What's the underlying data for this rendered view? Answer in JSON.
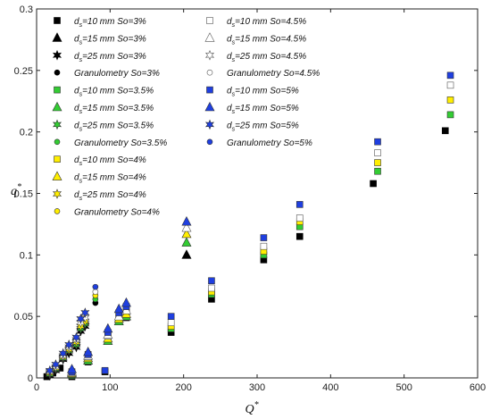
{
  "chart_data": {
    "type": "scatter",
    "xlabel": "Q*",
    "ylabel": "q*",
    "xlim": [
      0,
      600
    ],
    "ylim": [
      0,
      0.3
    ],
    "xticks": [
      "0",
      "100",
      "200",
      "300",
      "400",
      "500",
      "600"
    ],
    "yticks": [
      "0",
      "0.05",
      "0.1",
      "0.15",
      "0.2",
      "0.25",
      "0.3"
    ],
    "grid": false,
    "legend_position": "top-left",
    "colors": {
      "So=3%": "#000000",
      "So=3.5%": "#33cc33",
      "So=4%": "#ffee00",
      "So=4.5%": "#ffffff",
      "So=5%": "#1f3fe0"
    },
    "series": [
      {
        "name": "ds=10 mm So=3%",
        "marker": "square",
        "color": "#000000",
        "points": [
          [
            14,
            0.001
          ],
          [
            22,
            0.004
          ],
          [
            32,
            0.008
          ],
          [
            48,
            0.001
          ],
          [
            70,
            0.013
          ],
          [
            93,
            0.005
          ],
          [
            97,
            0.03
          ],
          [
            112,
            0.046
          ],
          [
            122,
            0.049
          ],
          [
            183,
            0.037
          ],
          [
            238,
            0.064
          ],
          [
            309,
            0.096
          ],
          [
            358,
            0.115
          ],
          [
            458,
            0.158
          ],
          [
            556,
            0.201
          ]
        ]
      },
      {
        "name": "ds=15 mm So=3%",
        "marker": "triangle",
        "color": "#000000",
        "points": [
          [
            204,
            0.1
          ]
        ]
      },
      {
        "name": "ds=25 mm So=3%",
        "marker": "star",
        "color": "#000000",
        "points": [
          [
            18,
            0.002
          ],
          [
            26,
            0.006
          ],
          [
            36,
            0.015
          ],
          [
            44,
            0.02
          ],
          [
            54,
            0.025
          ],
          [
            60,
            0.038
          ],
          [
            66,
            0.042
          ]
        ]
      },
      {
        "name": "Granulometry So=3%",
        "marker": "circle",
        "color": "#000000",
        "points": [
          [
            80,
            0.061
          ]
        ]
      },
      {
        "name": "ds=10 mm So=3.5%",
        "marker": "square",
        "color": "#33cc33",
        "points": [
          [
            48,
            0.002
          ],
          [
            70,
            0.015
          ],
          [
            97,
            0.031
          ],
          [
            112,
            0.048
          ],
          [
            122,
            0.052
          ],
          [
            183,
            0.04
          ],
          [
            238,
            0.068
          ],
          [
            309,
            0.1
          ],
          [
            358,
            0.123
          ],
          [
            464,
            0.168
          ],
          [
            563,
            0.214
          ]
        ]
      },
      {
        "name": "ds=15 mm So=3.5%",
        "marker": "triangle",
        "color": "#33cc33",
        "points": [
          [
            48,
            0.003
          ],
          [
            70,
            0.014
          ],
          [
            97,
            0.03
          ],
          [
            112,
            0.046
          ],
          [
            122,
            0.05
          ],
          [
            204,
            0.11
          ]
        ]
      },
      {
        "name": "ds=25 mm So=3.5%",
        "marker": "star",
        "color": "#33cc33",
        "points": [
          [
            18,
            0.003
          ],
          [
            26,
            0.007
          ],
          [
            36,
            0.016
          ],
          [
            44,
            0.022
          ],
          [
            54,
            0.027
          ],
          [
            60,
            0.04
          ],
          [
            66,
            0.044
          ]
        ]
      },
      {
        "name": "Granulometry So=3.5%",
        "marker": "circle",
        "color": "#33cc33",
        "points": [
          [
            80,
            0.064
          ]
        ]
      },
      {
        "name": "ds=10 mm So=4%",
        "marker": "square",
        "color": "#ffee00",
        "points": [
          [
            48,
            0.003
          ],
          [
            70,
            0.016
          ],
          [
            97,
            0.032
          ],
          [
            112,
            0.049
          ],
          [
            122,
            0.053
          ],
          [
            183,
            0.042
          ],
          [
            238,
            0.07
          ],
          [
            309,
            0.103
          ],
          [
            358,
            0.127
          ],
          [
            464,
            0.175
          ],
          [
            563,
            0.226
          ]
        ]
      },
      {
        "name": "ds=15 mm So=4%",
        "marker": "triangle",
        "color": "#ffee00",
        "points": [
          [
            48,
            0.004
          ],
          [
            70,
            0.016
          ],
          [
            97,
            0.032
          ],
          [
            112,
            0.048
          ],
          [
            122,
            0.052
          ],
          [
            204,
            0.117
          ]
        ]
      },
      {
        "name": "ds=25 mm So=4%",
        "marker": "star",
        "color": "#ffee00",
        "points": [
          [
            18,
            0.004
          ],
          [
            26,
            0.008
          ],
          [
            36,
            0.017
          ],
          [
            44,
            0.023
          ],
          [
            54,
            0.029
          ],
          [
            60,
            0.042
          ],
          [
            66,
            0.046
          ]
        ]
      },
      {
        "name": "Granulometry So=4%",
        "marker": "circle",
        "color": "#ffee00",
        "points": [
          [
            80,
            0.067
          ]
        ]
      },
      {
        "name": "ds=10 mm So=4.5%",
        "marker": "square",
        "color": "#ffffff",
        "points": [
          [
            48,
            0.004
          ],
          [
            70,
            0.017
          ],
          [
            97,
            0.034
          ],
          [
            112,
            0.051
          ],
          [
            122,
            0.055
          ],
          [
            183,
            0.045
          ],
          [
            238,
            0.073
          ],
          [
            309,
            0.107
          ],
          [
            358,
            0.13
          ],
          [
            464,
            0.183
          ],
          [
            563,
            0.238
          ]
        ]
      },
      {
        "name": "ds=15 mm So=4.5%",
        "marker": "triangle",
        "color": "#ffffff",
        "points": [
          [
            48,
            0.005
          ],
          [
            70,
            0.018
          ],
          [
            97,
            0.035
          ],
          [
            112,
            0.05
          ],
          [
            122,
            0.055
          ],
          [
            204,
            0.122
          ]
        ]
      },
      {
        "name": "ds=25 mm So=4.5%",
        "marker": "star",
        "color": "#ffffff",
        "points": [
          [
            18,
            0.005
          ],
          [
            26,
            0.009
          ],
          [
            36,
            0.018
          ],
          [
            44,
            0.025
          ],
          [
            54,
            0.031
          ],
          [
            60,
            0.045
          ],
          [
            66,
            0.049
          ]
        ]
      },
      {
        "name": "Granulometry So=4.5%",
        "marker": "circle",
        "color": "#ffffff",
        "points": [
          [
            80,
            0.07
          ]
        ]
      },
      {
        "name": "ds=10 mm So=5%",
        "marker": "square",
        "color": "#1f3fe0",
        "points": [
          [
            48,
            0.005
          ],
          [
            70,
            0.019
          ],
          [
            93,
            0.006
          ],
          [
            97,
            0.037
          ],
          [
            112,
            0.053
          ],
          [
            122,
            0.058
          ],
          [
            183,
            0.05
          ],
          [
            238,
            0.079
          ],
          [
            309,
            0.114
          ],
          [
            358,
            0.141
          ],
          [
            464,
            0.192
          ],
          [
            563,
            0.246
          ]
        ]
      },
      {
        "name": "ds=15 mm So=5%",
        "marker": "triangle",
        "color": "#1f3fe0",
        "points": [
          [
            48,
            0.007
          ],
          [
            70,
            0.021
          ],
          [
            97,
            0.04
          ],
          [
            112,
            0.056
          ],
          [
            122,
            0.061
          ],
          [
            204,
            0.127
          ]
        ]
      },
      {
        "name": "ds=25 mm So=5%",
        "marker": "star",
        "color": "#1f3fe0",
        "points": [
          [
            18,
            0.006
          ],
          [
            26,
            0.011
          ],
          [
            36,
            0.02
          ],
          [
            44,
            0.027
          ],
          [
            54,
            0.033
          ],
          [
            60,
            0.048
          ],
          [
            66,
            0.053
          ]
        ]
      },
      {
        "name": "Granulometry So=5%",
        "marker": "circle",
        "color": "#1f3fe0",
        "points": [
          [
            80,
            0.074
          ]
        ]
      }
    ]
  }
}
